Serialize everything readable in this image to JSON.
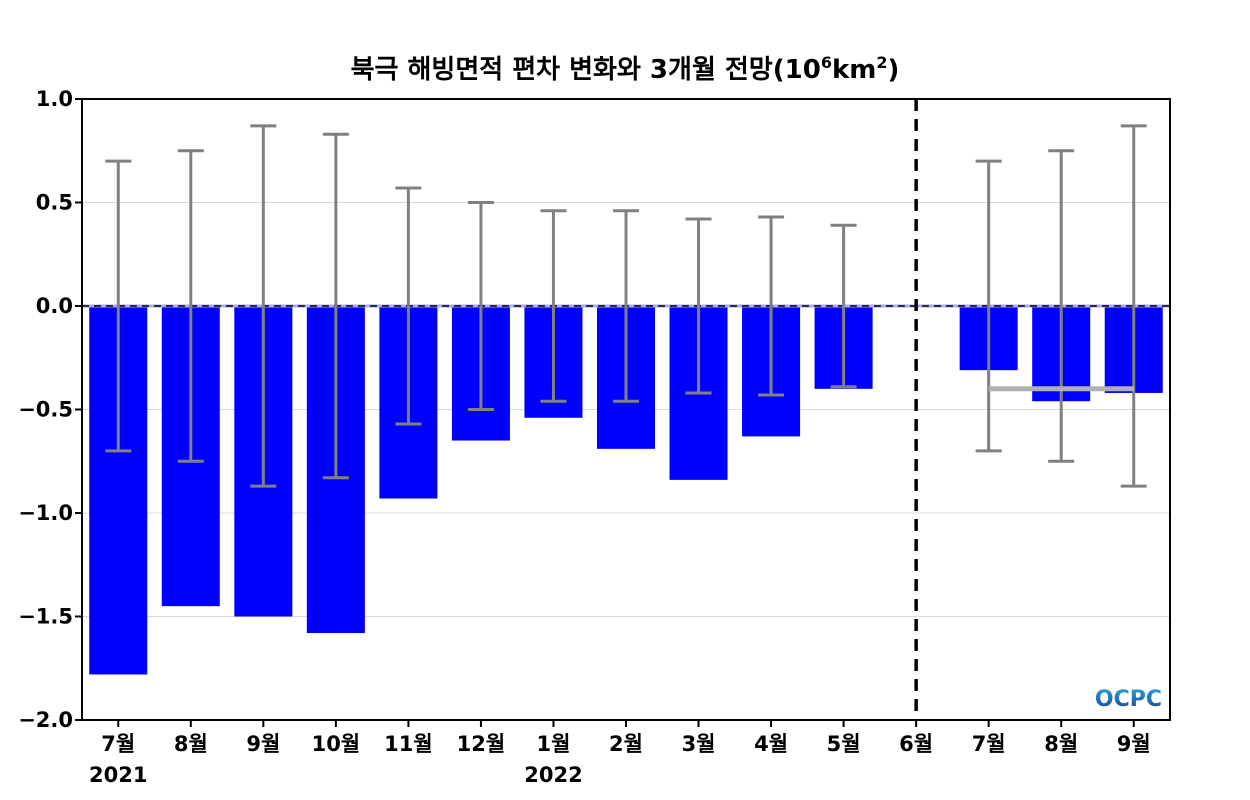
{
  "chart_data": {
    "type": "bar",
    "title": {
      "main": "북극 해빙면적 편차 변화와 3개월 전망(10",
      "sup1": "6",
      "mid": "km",
      "sup2": "2",
      "end": ")"
    },
    "categories": [
      "7월",
      "8월",
      "9월",
      "10월",
      "11월",
      "12월",
      "1월",
      "2월",
      "3월",
      "4월",
      "5월",
      "6월",
      "7월",
      "8월",
      "9월"
    ],
    "year_labels": [
      {
        "index": 0,
        "label": "2021"
      },
      {
        "index": 6,
        "label": "2022"
      }
    ],
    "values": [
      -1.78,
      -1.45,
      -1.5,
      -1.58,
      -0.93,
      -0.65,
      -0.54,
      -0.69,
      -0.84,
      -0.63,
      -0.4,
      0.0,
      -0.31,
      -0.46,
      -0.42
    ],
    "error_bars": [
      0.7,
      0.75,
      0.87,
      0.83,
      0.57,
      0.5,
      0.46,
      0.46,
      0.42,
      0.43,
      0.39,
      null,
      0.7,
      0.75,
      0.87
    ],
    "forecast_start_index": 12,
    "forecast_mean": -0.4,
    "ylim": [
      -2.0,
      1.0
    ],
    "yticks": [
      1.0,
      0.5,
      0.0,
      -0.5,
      -1.0,
      -1.5,
      -2.0
    ],
    "ytick_labels": [
      "1.0",
      "0.5",
      "0.0",
      "−0.5",
      "−1.0",
      "−1.5",
      "−2.0"
    ],
    "xlabel": "",
    "ylabel": "",
    "grid": true,
    "colors": {
      "bar": "#0000ff",
      "error_bar": "#808080",
      "forecast_mean_line": "#b0b0b0",
      "grid": "#d9d9d9",
      "zero_line": "#000000"
    }
  },
  "watermark": {
    "text": "OCPC",
    "color_top": "#29a3d9",
    "color_bottom": "#1a3f8f"
  }
}
